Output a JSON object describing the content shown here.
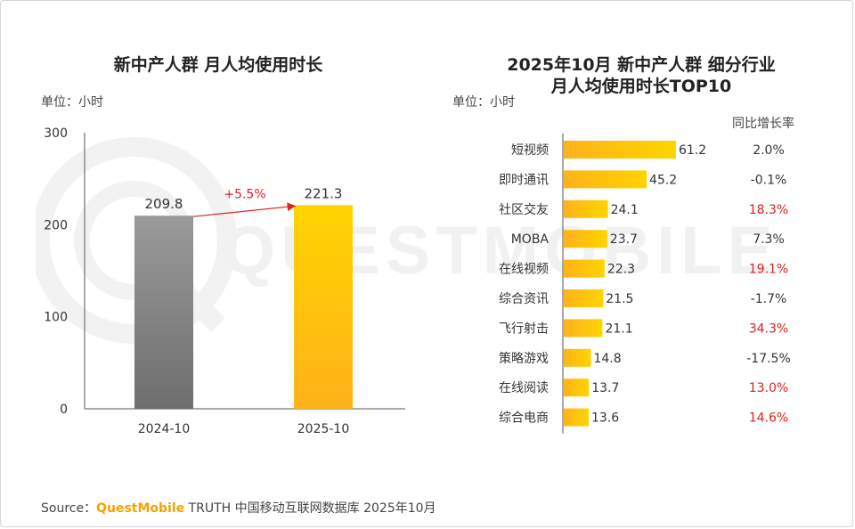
{
  "left_chart": {
    "title": "新中产人群 月人均使用时长",
    "unit": "单位：小时"
  },
  "right_chart": {
    "title_line1": "2025年10月 新中产人群 细分行业",
    "title_line2": "月人均使用时长TOP10",
    "unit": "单位：小时",
    "growth_header": "同比增长率"
  },
  "colors": {
    "gray_bar_top": "#9a9a9a",
    "gray_bar_bottom": "#6e6e6e",
    "gold_top": "#ffd400",
    "gold_bottom": "#ffb21a",
    "positive_growth": "#e02020",
    "neutral_text": "#333333",
    "arrow": "#e02020"
  },
  "chart_data": [
    {
      "type": "bar",
      "title": "新中产人群 月人均使用时长",
      "ylabel": "单位：小时",
      "categories": [
        "2024-10",
        "2025-10"
      ],
      "values": [
        209.8,
        221.3
      ],
      "value_labels": [
        "209.8",
        "221.3"
      ],
      "ylim": [
        0,
        300
      ],
      "yticks": [
        0,
        100,
        200,
        300
      ],
      "annotation": "+5.5%",
      "grid": false
    },
    {
      "type": "bar",
      "orientation": "horizontal",
      "title": "2025年10月 新中产人群 细分行业 月人均使用时长TOP10",
      "ylabel": "单位：小时",
      "categories": [
        "短视频",
        "即时通讯",
        "社区交友",
        "MOBA",
        "在线视频",
        "综合资讯",
        "飞行射击",
        "策略游戏",
        "在线阅读",
        "综合电商"
      ],
      "values": [
        61.2,
        45.2,
        24.1,
        23.7,
        22.3,
        21.5,
        21.1,
        14.8,
        13.7,
        13.6
      ],
      "value_labels": [
        "61.2",
        "45.2",
        "24.1",
        "23.7",
        "22.3",
        "21.5",
        "21.1",
        "14.8",
        "13.7",
        "13.6"
      ],
      "growth_header": "同比增长率",
      "growth": [
        "2.0%",
        "-0.1%",
        "18.3%",
        "7.3%",
        "19.1%",
        "-1.7%",
        "34.3%",
        "-17.5%",
        "13.0%",
        "14.6%"
      ],
      "growth_highlight": [
        false,
        false,
        true,
        false,
        true,
        false,
        true,
        false,
        true,
        true
      ],
      "grid": false
    }
  ],
  "source": {
    "prefix": "Source：",
    "brand": "QuestMobile",
    "rest": " TRUTH 中国移动互联网数据库 2025年10月"
  }
}
